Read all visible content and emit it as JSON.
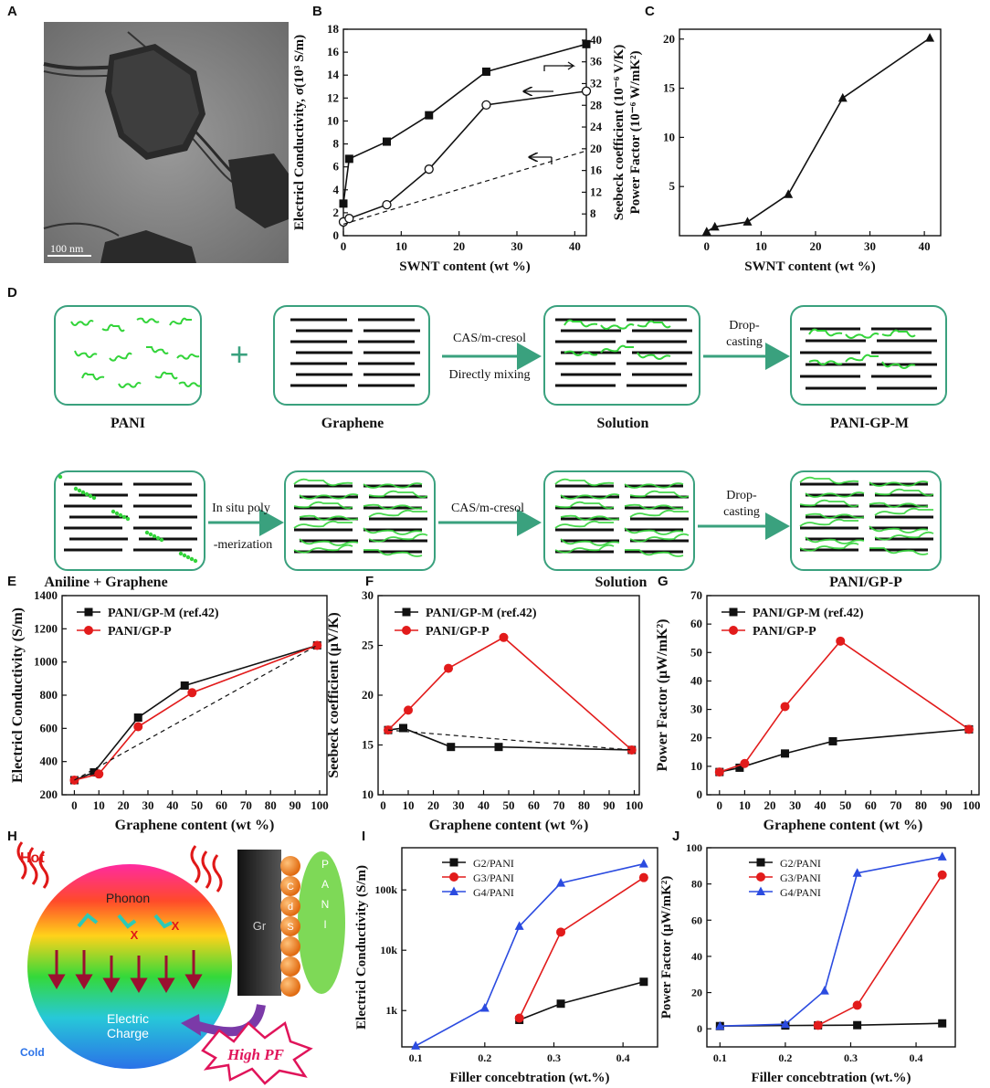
{
  "panel_labels": [
    "A",
    "B",
    "C",
    "D",
    "E",
    "F",
    "G",
    "H",
    "I",
    "J"
  ],
  "micrograph": {
    "scale_bar": "100 nm"
  },
  "schematic": {
    "top": {
      "labels": [
        "PANI",
        "Graphene",
        "Solution",
        "PANI-GP-M"
      ],
      "arrow1_top": "CAS/m-cresol",
      "arrow1_bottom": "Directly mixing",
      "arrow2_top": "Drop-",
      "arrow2_bottom": "casting",
      "plus": "+"
    },
    "bottom": {
      "labels": [
        "Aniline + Graphene",
        "Solution",
        "PANI/GP-P"
      ],
      "arrow1_top": "In situ poly",
      "arrow1_bottom": "-merization",
      "arrow2_top": "CAS/m-cresol",
      "arrow3_top": "Drop-",
      "arrow3_bottom": "casting"
    }
  },
  "diagram_H": {
    "hot": "Hot",
    "cold": "Cold",
    "phonon": "Phonon",
    "electric": "Electric",
    "charge": "Charge",
    "gr": "Gr",
    "cds": [
      "C",
      "d",
      "S"
    ],
    "pani": [
      "P",
      "A",
      "N",
      "I"
    ],
    "high_pf": "High PF",
    "cross": "X"
  },
  "colors": {
    "black_series": "#111111",
    "red_series": "#e21b1b",
    "blue_series": "#2b4be0",
    "frame_green": "#3aa17e",
    "fiber_green": "#33d43a"
  },
  "chart_data": [
    {
      "id": "B",
      "type": "line",
      "xlabel": "SWNT content (wt %)",
      "ylabel": "Electricl Conductivity, σ(10³ S/m)",
      "y2label": "Seebeck coefficient (10⁻⁶ V/K)",
      "xlim": [
        0,
        42
      ],
      "ylim": [
        0,
        18
      ],
      "y2lim": [
        4,
        42
      ],
      "xticks": [
        0,
        10,
        20,
        30,
        40
      ],
      "yticks": [
        0,
        2,
        4,
        6,
        8,
        10,
        12,
        14,
        16,
        18
      ],
      "y2ticks": [
        8,
        12,
        16,
        20,
        24,
        28,
        32,
        36,
        40
      ],
      "series": [
        {
          "marker": "filled-square",
          "axis": "left",
          "x": [
            0,
            1,
            7.5,
            14.8,
            24.7,
            42
          ],
          "y": [
            2.8,
            6.7,
            8.2,
            10.5,
            14.3,
            16.7
          ]
        },
        {
          "marker": "open-circle",
          "axis": "left",
          "x": [
            0,
            1,
            7.5,
            14.8,
            24.7,
            42
          ],
          "y": [
            1.2,
            1.5,
            2.7,
            5.8,
            11.4,
            12.6
          ]
        },
        {
          "marker": "none",
          "dashed": true,
          "axis": "left",
          "x": [
            0,
            42
          ],
          "y": [
            1.0,
            7.4
          ]
        }
      ]
    },
    {
      "id": "C",
      "type": "line",
      "xlabel": "SWNT content (wt %)",
      "ylabel": "Power Factor (10⁻⁶ W/mK²)",
      "xlim": [
        -5,
        43
      ],
      "ylim": [
        0,
        21
      ],
      "xticks": [
        0,
        10,
        20,
        30,
        40
      ],
      "yticks": [
        5,
        10,
        15,
        20
      ],
      "series": [
        {
          "marker": "triangle",
          "x": [
            0,
            1.5,
            7.5,
            15,
            25,
            41
          ],
          "y": [
            0.4,
            0.9,
            1.4,
            4.2,
            14,
            20.1
          ]
        }
      ]
    },
    {
      "id": "E",
      "type": "line",
      "xlabel": "Graphene content (wt %)",
      "ylabel": "Electricl Conductivity (S/m)",
      "xlim": [
        -5,
        103
      ],
      "ylim": [
        200,
        1400
      ],
      "xticks": [
        0,
        10,
        20,
        30,
        40,
        50,
        60,
        70,
        80,
        90,
        100
      ],
      "yticks": [
        200,
        400,
        600,
        800,
        1000,
        1200,
        1400
      ],
      "series": [
        {
          "name": "PANI/GP-M (ref.42)",
          "marker": "square",
          "x": [
            0,
            8,
            26,
            45,
            99
          ],
          "y": [
            288,
            335,
            665,
            858,
            1100
          ]
        },
        {
          "name": "PANI/GP-P",
          "marker": "circle",
          "x": [
            0,
            10,
            26,
            48,
            99
          ],
          "y": [
            288,
            325,
            610,
            815,
            1100
          ]
        },
        {
          "marker": "none",
          "dashed": true,
          "x": [
            0,
            99
          ],
          "y": [
            288,
            1100
          ]
        }
      ]
    },
    {
      "id": "F",
      "type": "line",
      "xlabel": "Graphene content (wt %)",
      "ylabel": "Seebeck coefficient (μV/K)",
      "xlim": [
        -2,
        102
      ],
      "ylim": [
        10,
        30
      ],
      "xticks": [
        0,
        10,
        20,
        30,
        40,
        50,
        60,
        70,
        80,
        90,
        100
      ],
      "yticks": [
        10,
        15,
        20,
        25,
        30
      ],
      "series": [
        {
          "name": "PANI/GP-M (ref.42)",
          "marker": "square",
          "x": [
            2,
            8,
            27,
            46,
            99
          ],
          "y": [
            16.5,
            16.7,
            14.8,
            14.8,
            14.5
          ]
        },
        {
          "name": "PANI/GP-P",
          "marker": "circle",
          "x": [
            2,
            10,
            26,
            48,
            99
          ],
          "y": [
            16.5,
            18.5,
            22.7,
            25.8,
            14.5
          ]
        },
        {
          "marker": "none",
          "dashed": true,
          "x": [
            2,
            99
          ],
          "y": [
            16.5,
            14.5
          ]
        }
      ]
    },
    {
      "id": "G",
      "type": "line",
      "xlabel": "Graphene content (wt %)",
      "ylabel": "Power Factor (μW/mK²)",
      "xlim": [
        -5,
        103
      ],
      "ylim": [
        0,
        70
      ],
      "xticks": [
        0,
        10,
        20,
        30,
        40,
        50,
        60,
        70,
        80,
        90,
        100
      ],
      "yticks": [
        0,
        10,
        20,
        30,
        40,
        50,
        60,
        70
      ],
      "series": [
        {
          "name": "PANI/GP-M (ref.42)",
          "marker": "square",
          "x": [
            0,
            8,
            26,
            45,
            99
          ],
          "y": [
            8,
            9.5,
            14.5,
            18.8,
            23
          ]
        },
        {
          "name": "PANI/GP-P",
          "marker": "circle",
          "x": [
            0,
            10,
            26,
            48,
            99
          ],
          "y": [
            8,
            11,
            31,
            54,
            23
          ]
        }
      ]
    },
    {
      "id": "I",
      "type": "line",
      "yscale": "log",
      "xlabel": "Filler concebtration (wt.%)",
      "ylabel": "Electricl Conductivity (S/m)",
      "xlim": [
        0.08,
        0.45
      ],
      "ylim": [
        250,
        500000
      ],
      "xticks": [
        0.1,
        0.2,
        0.3,
        0.4
      ],
      "yticks": [
        1000,
        10000,
        100000
      ],
      "yticklabels": [
        "1k",
        "10k",
        "100k"
      ],
      "series": [
        {
          "name": "G2/PANI",
          "marker": "square",
          "x": [
            0.25,
            0.31,
            0.43
          ],
          "y": [
            700,
            1300,
            3000
          ]
        },
        {
          "name": "G3/PANI",
          "marker": "circle",
          "x": [
            0.25,
            0.31,
            0.43
          ],
          "y": [
            750,
            20000,
            160000
          ]
        },
        {
          "name": "G4/PANI",
          "marker": "triangle",
          "x": [
            0.1,
            0.2,
            0.25,
            0.31,
            0.43
          ],
          "y": [
            260,
            1100,
            25000,
            130000,
            270000
          ]
        }
      ]
    },
    {
      "id": "J",
      "type": "line",
      "xlabel": "Filler concebtration (wt.%)",
      "ylabel": "Power Factor (μW/mK²)",
      "xlim": [
        0.08,
        0.46
      ],
      "ylim": [
        -10,
        100
      ],
      "xticks": [
        0.1,
        0.2,
        0.3,
        0.4
      ],
      "yticks": [
        0,
        20,
        40,
        60,
        80,
        100
      ],
      "series": [
        {
          "name": "G2/PANI",
          "marker": "square",
          "x": [
            0.1,
            0.2,
            0.25,
            0.31,
            0.44
          ],
          "y": [
            1.5,
            1.8,
            1.9,
            2.0,
            3.0
          ]
        },
        {
          "name": "G3/PANI",
          "marker": "circle",
          "x": [
            0.25,
            0.31,
            0.44
          ],
          "y": [
            1.9,
            13,
            85
          ]
        },
        {
          "name": "G4/PANI",
          "marker": "triangle",
          "x": [
            0.1,
            0.2,
            0.26,
            0.31,
            0.44
          ],
          "y": [
            1.5,
            2.5,
            21,
            86,
            95
          ]
        }
      ]
    }
  ]
}
